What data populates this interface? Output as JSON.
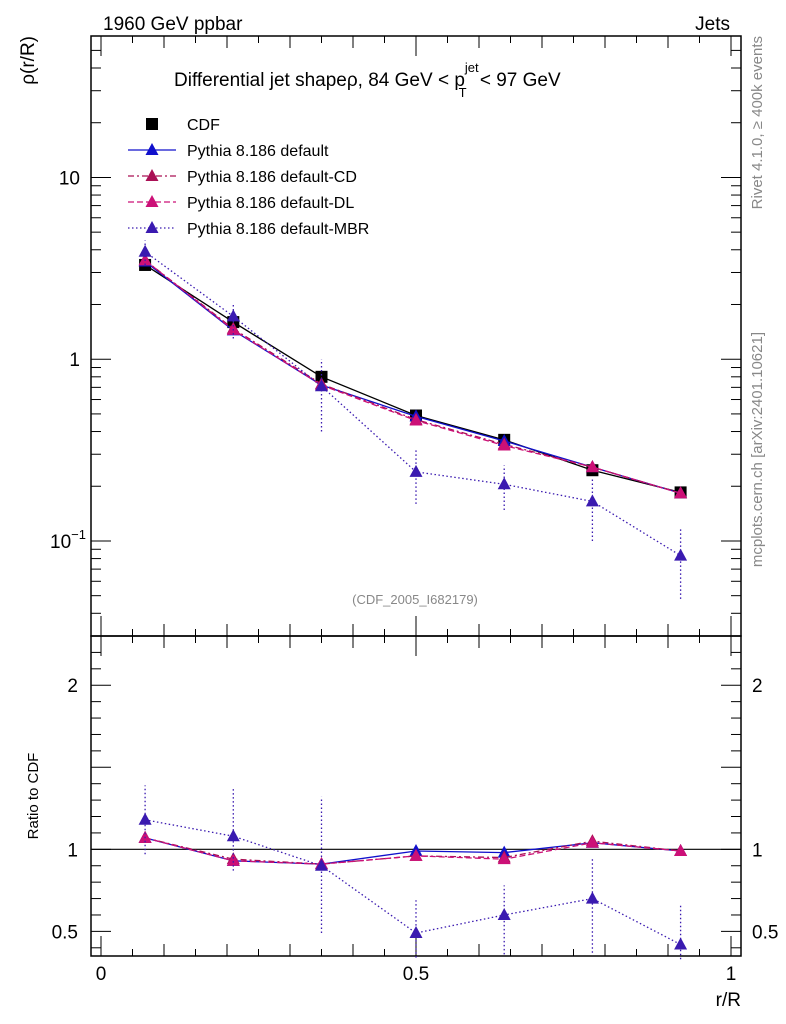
{
  "header": {
    "energy_label": "1960 GeV ppbar",
    "category_label": "Jets",
    "side_label_top": "Rivet 4.1.0, ≥ 400k events",
    "side_label_bottom": "mcplots.cern.ch [arXiv:2401.10621]",
    "analysis_id": "(CDF_2005_I682179)"
  },
  "title": {
    "prefix": "Differential jet shapeρ, 84 GeV < p",
    "superscript": "jet",
    "subscript": "T",
    "suffix": " < 97 GeV"
  },
  "colors": {
    "cdf": "#000000",
    "default": "#1010cc",
    "cd": "#aa1055",
    "dl": "#cc1077",
    "mbr": "#3a1ab0"
  },
  "chart_data": [
    {
      "type": "line",
      "panel": "main",
      "xlabel": "r/R",
      "ylabel": "ρ(r/R)",
      "yscale": "log",
      "xlim": [
        0,
        1
      ],
      "ylim": [
        0.03,
        60
      ],
      "yticks": [
        {
          "value": 0.1,
          "label": "10",
          "sup": "−1"
        },
        {
          "value": 1,
          "label": "1"
        },
        {
          "value": 10,
          "label": "10"
        }
      ],
      "x": [
        0.07,
        0.21,
        0.35,
        0.5,
        0.64,
        0.78,
        0.92
      ],
      "series": [
        {
          "name": "CDF",
          "key": "cdf",
          "marker": "square",
          "dash": "",
          "values": [
            3.3,
            1.6,
            0.8,
            0.49,
            0.36,
            0.245,
            0.185
          ],
          "err_low": [
            3.3,
            1.6,
            0.8,
            0.49,
            0.36,
            0.245,
            0.185
          ],
          "err_high": [
            3.3,
            1.6,
            0.8,
            0.49,
            0.36,
            0.245,
            0.185
          ]
        },
        {
          "name": "Pythia 8.186 default",
          "key": "default",
          "marker": "triangle",
          "dash": "",
          "values": [
            3.45,
            1.44,
            0.72,
            0.485,
            0.355,
            0.255,
            0.183
          ],
          "err_low": [
            3.45,
            1.44,
            0.72,
            0.485,
            0.355,
            0.255,
            0.183
          ],
          "err_high": [
            3.45,
            1.44,
            0.72,
            0.485,
            0.355,
            0.255,
            0.183
          ]
        },
        {
          "name": "Pythia 8.186 default-CD",
          "key": "cd",
          "marker": "triangle",
          "dash": "6,3,2,3",
          "values": [
            3.5,
            1.47,
            0.73,
            0.465,
            0.34,
            0.255,
            0.183
          ],
          "err_low": [
            3.5,
            1.47,
            0.73,
            0.465,
            0.34,
            0.255,
            0.183
          ],
          "err_high": [
            3.5,
            1.47,
            0.73,
            0.465,
            0.34,
            0.255,
            0.183
          ]
        },
        {
          "name": "Pythia 8.186 default-DL",
          "key": "dl",
          "marker": "triangle",
          "dash": "6,3",
          "values": [
            3.5,
            1.45,
            0.72,
            0.46,
            0.335,
            0.255,
            0.183
          ],
          "err_low": [
            3.5,
            1.45,
            0.72,
            0.46,
            0.335,
            0.255,
            0.183
          ],
          "err_high": [
            3.5,
            1.45,
            0.72,
            0.46,
            0.335,
            0.255,
            0.183
          ]
        },
        {
          "name": "Pythia 8.186 default-MBR",
          "key": "mbr",
          "marker": "triangle",
          "dash": "1.5,2.5",
          "values": [
            3.9,
            1.72,
            0.71,
            0.24,
            0.205,
            0.165,
            0.083
          ],
          "err_low": [
            3.3,
            1.3,
            0.4,
            0.16,
            0.148,
            0.1,
            0.048
          ],
          "err_high": [
            4.5,
            2.05,
            1.0,
            0.32,
            0.26,
            0.225,
            0.118
          ]
        }
      ]
    },
    {
      "type": "line",
      "panel": "ratio",
      "xlabel": "r/R",
      "ylabel": "Ratio to CDF",
      "xlim": [
        0,
        1
      ],
      "ylim": [
        0.35,
        2.3
      ],
      "xticks": [
        {
          "value": 0,
          "label": "0"
        },
        {
          "value": 0.5,
          "label": "0.5"
        },
        {
          "value": 1,
          "label": "1"
        }
      ],
      "yticks": [
        {
          "value": 0.5,
          "label": "0.5"
        },
        {
          "value": 1,
          "label": "1"
        },
        {
          "value": 2,
          "label": "2"
        }
      ],
      "x": [
        0.07,
        0.21,
        0.35,
        0.5,
        0.64,
        0.78,
        0.92
      ],
      "series": [
        {
          "name": "Pythia 8.186 default",
          "key": "default",
          "marker": "triangle",
          "dash": "",
          "values": [
            1.07,
            0.93,
            0.91,
            0.99,
            0.98,
            1.04,
            0.99
          ],
          "err_low": [
            1.07,
            0.93,
            0.91,
            0.99,
            0.98,
            1.04,
            0.99
          ],
          "err_high": [
            1.07,
            0.93,
            0.91,
            0.99,
            0.98,
            1.04,
            0.99
          ]
        },
        {
          "name": "Pythia 8.186 default-CD",
          "key": "cd",
          "marker": "triangle",
          "dash": "6,3,2,3",
          "values": [
            1.07,
            0.94,
            0.91,
            0.96,
            0.95,
            1.05,
            0.99
          ],
          "err_low": [
            1.07,
            0.94,
            0.91,
            0.96,
            0.95,
            1.05,
            0.99
          ],
          "err_high": [
            1.07,
            0.94,
            0.91,
            0.96,
            0.95,
            1.05,
            0.99
          ]
        },
        {
          "name": "Pythia 8.186 default-DL",
          "key": "dl",
          "marker": "triangle",
          "dash": "6,3",
          "values": [
            1.07,
            0.93,
            0.91,
            0.96,
            0.94,
            1.04,
            0.99
          ],
          "err_low": [
            1.07,
            0.93,
            0.91,
            0.96,
            0.94,
            1.04,
            0.99
          ],
          "err_high": [
            1.07,
            0.93,
            0.91,
            0.96,
            0.94,
            1.04,
            0.99
          ]
        },
        {
          "name": "Pythia 8.186 default-MBR",
          "key": "mbr",
          "marker": "triangle",
          "dash": "1.5,2.5",
          "values": [
            1.18,
            1.08,
            0.9,
            0.49,
            0.6,
            0.7,
            0.42
          ],
          "err_low": [
            0.97,
            0.87,
            0.49,
            0.34,
            0.36,
            0.37,
            0.33
          ],
          "err_high": [
            1.39,
            1.37,
            1.32,
            0.69,
            0.78,
            0.94,
            0.67
          ]
        }
      ]
    }
  ]
}
